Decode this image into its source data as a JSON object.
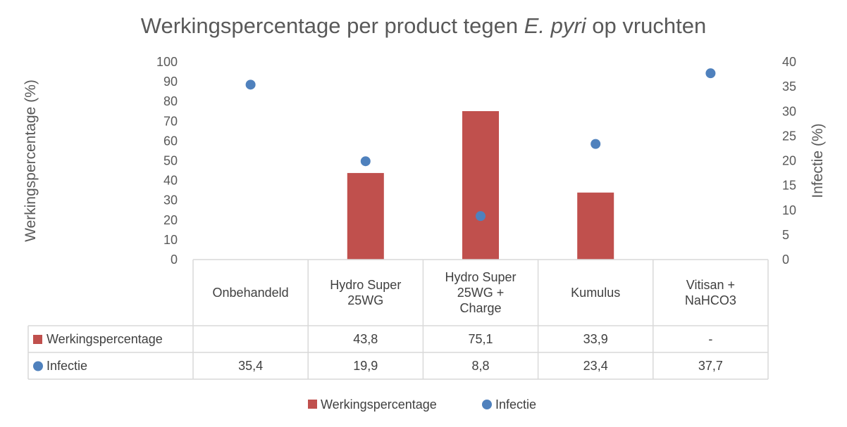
{
  "chart_data": {
    "type": "bar",
    "title_parts": [
      {
        "text": "Werkingspercentage per product tegen ",
        "italic": false
      },
      {
        "text": "E. pyri",
        "italic": true
      },
      {
        "text": " op vruchten",
        "italic": false
      }
    ],
    "categories": [
      [
        "Onbehandeld"
      ],
      [
        "Hydro Super",
        "25WG"
      ],
      [
        "Hydro Super",
        "25WG +",
        "Charge"
      ],
      [
        "Kumulus"
      ],
      [
        "Vitisan +",
        "NaHCO3"
      ]
    ],
    "y_left": {
      "label": "Werkingspercentage (%)",
      "min": 0,
      "max": 100,
      "step": 10
    },
    "y_right": {
      "label": "Infectie (%)",
      "min": 0,
      "max": 40,
      "step": 5
    },
    "series": [
      {
        "name": "Werkingspercentage",
        "type": "bar",
        "axis": "left",
        "color": "#C0504D",
        "values": [
          null,
          43.8,
          75.1,
          33.9,
          null
        ],
        "table_values": [
          "",
          "43,8",
          "75,1",
          "33,9",
          "-"
        ]
      },
      {
        "name": "Infectie",
        "type": "scatter",
        "axis": "right",
        "color": "#4F81BD",
        "values": [
          35.4,
          19.9,
          8.8,
          23.4,
          37.7
        ],
        "table_values": [
          "35,4",
          "19,9",
          "8,8",
          "23,4",
          "37,7"
        ]
      }
    ],
    "legend_position": "bottom",
    "data_table": true,
    "grid": false
  }
}
